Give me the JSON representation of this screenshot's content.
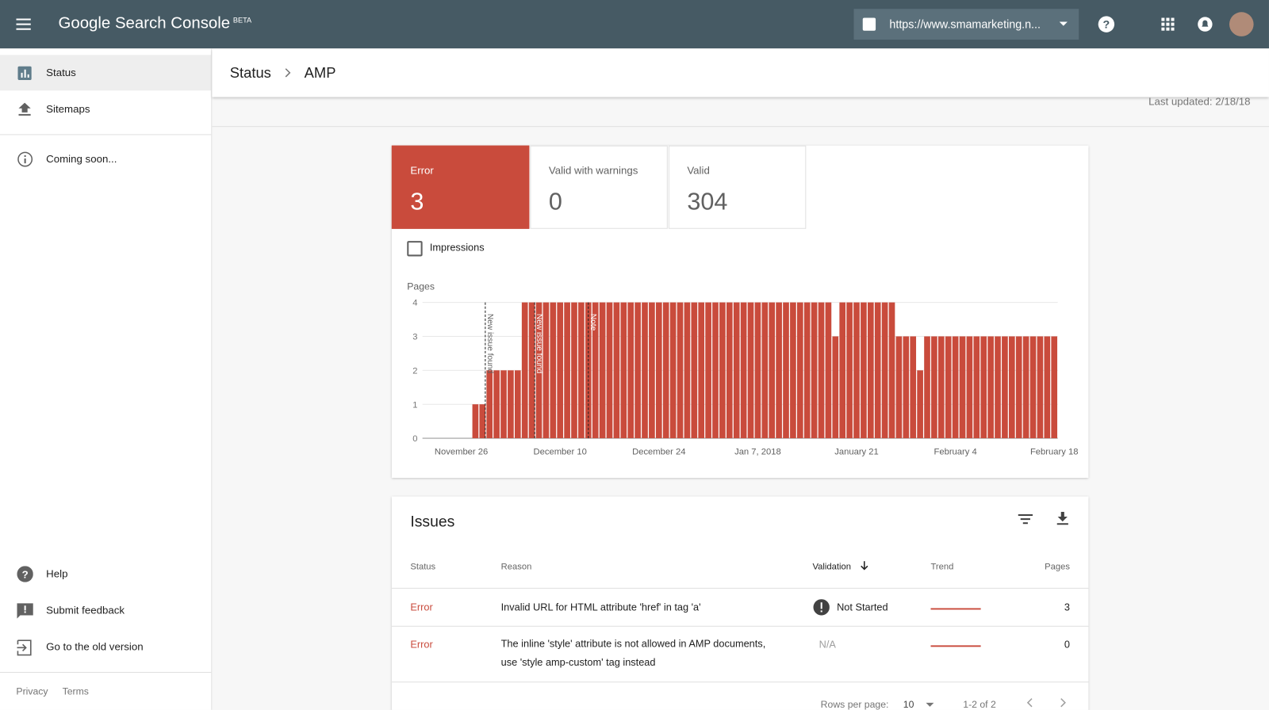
{
  "header": {
    "product": "Google Search Console",
    "badge": "BETA",
    "property": "https://www.smamarketing.n..."
  },
  "sidebar": {
    "nav": [
      "Status",
      "Sitemaps",
      "Coming soon..."
    ],
    "footer_nav": [
      "Help",
      "Submit feedback",
      "Go to the old version"
    ],
    "links": [
      "Privacy",
      "Terms"
    ]
  },
  "breadcrumb": [
    "Status",
    "AMP"
  ],
  "last_updated": "Last updated: 2/18/18",
  "summary": [
    {
      "label": "Error",
      "value": 3
    },
    {
      "label": "Valid with warnings",
      "value": 0
    },
    {
      "label": "Valid",
      "value": 304
    }
  ],
  "impressions": "Impressions",
  "chart_data": {
    "type": "bar",
    "ylabel": "Pages",
    "color": "#c94b3c",
    "grid": true,
    "ylim": [
      0,
      4
    ],
    "yticks": [
      0,
      1,
      2,
      3,
      4
    ],
    "categories": [
      null,
      null,
      null,
      null,
      null,
      "November 26",
      null,
      null,
      null,
      null,
      null,
      null,
      null,
      null,
      null,
      null,
      null,
      null,
      null,
      "December 10",
      null,
      null,
      null,
      null,
      null,
      null,
      null,
      null,
      null,
      null,
      null,
      null,
      null,
      "December 24",
      null,
      null,
      null,
      null,
      null,
      null,
      null,
      null,
      null,
      null,
      null,
      null,
      null,
      "Jan 7, 2018",
      null,
      null,
      null,
      null,
      null,
      null,
      null,
      null,
      null,
      null,
      null,
      null,
      null,
      "January 21",
      null,
      null,
      null,
      null,
      null,
      null,
      null,
      null,
      null,
      null,
      null,
      null,
      null,
      "February 4",
      null,
      null,
      null,
      null,
      null,
      null,
      null,
      null,
      null,
      null,
      null,
      null,
      null,
      "February 18"
    ],
    "values": [
      0,
      0,
      0,
      0,
      0,
      0,
      0,
      1,
      1,
      2,
      2,
      2,
      2,
      2,
      4,
      4,
      4,
      4,
      4,
      4,
      4,
      4,
      4,
      4,
      4,
      4,
      4,
      4,
      4,
      4,
      4,
      4,
      4,
      4,
      4,
      4,
      4,
      4,
      4,
      4,
      4,
      4,
      4,
      4,
      4,
      4,
      4,
      4,
      4,
      4,
      4,
      4,
      4,
      4,
      4,
      4,
      4,
      4,
      3,
      4,
      4,
      4,
      4,
      4,
      4,
      4,
      4,
      3,
      3,
      3,
      2,
      3,
      3,
      3,
      3,
      3,
      3,
      3,
      3,
      3,
      3,
      3,
      3,
      3,
      3,
      3,
      3,
      3,
      3,
      3
    ],
    "annotations": [
      "New issue found",
      "New issue found",
      "Note"
    ]
  },
  "issues": {
    "title": "Issues",
    "columns": [
      "Status",
      "Reason",
      "Validation",
      "Trend",
      "Pages"
    ],
    "rows": [
      [
        "Error",
        "Invalid URL for HTML attribute 'href' in tag 'a'",
        "Not Started",
        3
      ],
      [
        "Error",
        "The inline 'style' attribute is not allowed in AMP documents, use 'style amp-custom' tag instead",
        "N/A",
        0
      ]
    ],
    "rows_per_page_label": "Rows per page:",
    "rows_per_page": 10,
    "range": "1-2 of 2"
  }
}
